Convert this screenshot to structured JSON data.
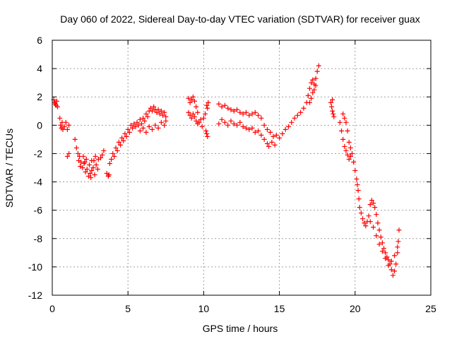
{
  "chart_data": {
    "type": "scatter",
    "title": "Day 060 of 2022, Sidereal Day-to-day VTEC variation (SDTVAR) for receiver guax",
    "xlabel": "GPS time / hours",
    "ylabel": "SDTVAR / TECUs",
    "xlim": [
      0,
      25
    ],
    "ylim": [
      -12,
      6
    ],
    "xticks": [
      0,
      5,
      10,
      15,
      20,
      25
    ],
    "xtick_labels": [
      "0",
      "5",
      "10",
      "15",
      "20",
      "25"
    ],
    "yticks": [
      -12,
      -10,
      -8,
      -6,
      -4,
      -2,
      0,
      2,
      4,
      6
    ],
    "ytick_labels": [
      "-12",
      "-10",
      "-8",
      "-6",
      "-4",
      "-2",
      "0",
      "2",
      "4",
      "6"
    ],
    "grid": true,
    "marker": "+",
    "color": "#ff0000",
    "series": [
      {
        "name": "guax",
        "points": [
          [
            0.1,
            1.8
          ],
          [
            0.15,
            1.6
          ],
          [
            0.2,
            1.5
          ],
          [
            0.25,
            1.4
          ],
          [
            0.3,
            1.7
          ],
          [
            0.35,
            1.3
          ],
          [
            0.5,
            0.5
          ],
          [
            0.55,
            0.0
          ],
          [
            0.6,
            -0.2
          ],
          [
            0.65,
            0.2
          ],
          [
            0.7,
            -0.3
          ],
          [
            0.8,
            -0.1
          ],
          [
            0.9,
            0.2
          ],
          [
            1.0,
            -0.3
          ],
          [
            1.1,
            0.0
          ],
          [
            1.0,
            -2.2
          ],
          [
            1.1,
            -2.0
          ],
          [
            1.5,
            -1.0
          ],
          [
            1.6,
            -1.6
          ],
          [
            1.7,
            -2.0
          ],
          [
            1.75,
            -2.5
          ],
          [
            1.8,
            -2.2
          ],
          [
            1.85,
            -2.9
          ],
          [
            1.9,
            -2.6
          ],
          [
            2.0,
            -3.0
          ],
          [
            2.1,
            -2.7
          ],
          [
            2.2,
            -3.3
          ],
          [
            2.3,
            -3.1
          ],
          [
            2.4,
            -3.6
          ],
          [
            2.5,
            -3.4
          ],
          [
            2.55,
            -3.7
          ],
          [
            2.6,
            -3.2
          ],
          [
            2.7,
            -3.0
          ],
          [
            2.8,
            -3.5
          ],
          [
            2.9,
            -2.8
          ],
          [
            3.0,
            -3.1
          ],
          [
            2.05,
            -2.2
          ],
          [
            2.15,
            -2.6
          ],
          [
            2.25,
            -2.4
          ],
          [
            2.45,
            -2.8
          ],
          [
            2.6,
            -2.5
          ],
          [
            2.75,
            -2.5
          ],
          [
            2.85,
            -2.2
          ],
          [
            3.05,
            -2.4
          ],
          [
            3.2,
            -2.3
          ],
          [
            3.3,
            -2.1
          ],
          [
            3.4,
            -1.8
          ],
          [
            3.6,
            -3.4
          ],
          [
            3.7,
            -3.6
          ],
          [
            3.75,
            -3.5
          ],
          [
            3.8,
            -2.7
          ],
          [
            3.9,
            -2.4
          ],
          [
            4.0,
            -2.0
          ],
          [
            4.1,
            -2.2
          ],
          [
            4.2,
            -1.6
          ],
          [
            4.3,
            -1.8
          ],
          [
            4.4,
            -1.2
          ],
          [
            4.5,
            -1.4
          ],
          [
            4.6,
            -0.9
          ],
          [
            4.7,
            -1.1
          ],
          [
            4.8,
            -0.6
          ],
          [
            4.9,
            -0.8
          ],
          [
            5.0,
            -0.3
          ],
          [
            5.1,
            -0.5
          ],
          [
            5.2,
            0.0
          ],
          [
            5.3,
            -0.2
          ],
          [
            5.4,
            0.1
          ],
          [
            5.5,
            -0.1
          ],
          [
            5.6,
            0.2
          ],
          [
            5.7,
            0.0
          ],
          [
            5.8,
            0.4
          ],
          [
            5.9,
            0.1
          ],
          [
            6.0,
            0.5
          ],
          [
            6.1,
            0.3
          ],
          [
            6.2,
            0.8
          ],
          [
            6.3,
            0.6
          ],
          [
            6.4,
            1.0
          ],
          [
            6.5,
            1.2
          ],
          [
            6.6,
            1.0
          ],
          [
            6.7,
            1.3
          ],
          [
            6.8,
            1.1
          ],
          [
            6.9,
            0.9
          ],
          [
            7.0,
            1.1
          ],
          [
            7.1,
            0.8
          ],
          [
            7.2,
            1.0
          ],
          [
            7.3,
            0.7
          ],
          [
            7.4,
            0.9
          ],
          [
            7.5,
            0.6
          ],
          [
            5.8,
            -0.4
          ],
          [
            6.0,
            -0.2
          ],
          [
            6.2,
            -0.5
          ],
          [
            6.4,
            -0.1
          ],
          [
            6.6,
            -0.3
          ],
          [
            6.8,
            0.0
          ],
          [
            7.0,
            -0.2
          ],
          [
            7.2,
            0.2
          ],
          [
            7.4,
            0.0
          ],
          [
            7.5,
            0.3
          ],
          [
            9.0,
            1.9
          ],
          [
            9.1,
            1.6
          ],
          [
            9.2,
            1.8
          ],
          [
            9.3,
            2.0
          ],
          [
            9.4,
            1.7
          ],
          [
            9.5,
            1.3
          ],
          [
            9.6,
            0.9
          ],
          [
            9.0,
            0.9
          ],
          [
            9.1,
            0.7
          ],
          [
            9.2,
            0.5
          ],
          [
            9.3,
            0.8
          ],
          [
            9.4,
            0.6
          ],
          [
            9.5,
            0.3
          ],
          [
            9.6,
            0.1
          ],
          [
            9.7,
            0.2
          ],
          [
            9.8,
            0.4
          ],
          [
            9.9,
            -0.1
          ],
          [
            10.0,
            0.5
          ],
          [
            10.1,
            0.8
          ],
          [
            10.2,
            1.4
          ],
          [
            10.25,
            1.2
          ],
          [
            10.3,
            1.6
          ],
          [
            10.15,
            -0.4
          ],
          [
            10.2,
            -0.6
          ],
          [
            10.25,
            -0.8
          ],
          [
            11.0,
            1.5
          ],
          [
            11.2,
            1.3
          ],
          [
            11.4,
            1.4
          ],
          [
            11.6,
            1.2
          ],
          [
            11.8,
            1.1
          ],
          [
            12.0,
            1.0
          ],
          [
            12.2,
            1.1
          ],
          [
            12.4,
            0.9
          ],
          [
            12.6,
            0.8
          ],
          [
            12.8,
            0.9
          ],
          [
            13.0,
            0.7
          ],
          [
            13.2,
            0.8
          ],
          [
            13.4,
            0.9
          ],
          [
            13.6,
            0.7
          ],
          [
            13.8,
            0.5
          ],
          [
            11.0,
            0.1
          ],
          [
            11.2,
            0.4
          ],
          [
            11.4,
            0.2
          ],
          [
            11.6,
            0.0
          ],
          [
            11.8,
            0.3
          ],
          [
            12.0,
            0.1
          ],
          [
            12.2,
            0.0
          ],
          [
            12.4,
            0.2
          ],
          [
            12.6,
            -0.1
          ],
          [
            12.8,
            -0.2
          ],
          [
            13.0,
            -0.3
          ],
          [
            13.2,
            -0.2
          ],
          [
            13.4,
            -0.5
          ],
          [
            13.6,
            -0.4
          ],
          [
            13.8,
            -0.7
          ],
          [
            14.0,
            -1.0
          ],
          [
            14.2,
            -1.3
          ],
          [
            14.3,
            -1.5
          ],
          [
            14.5,
            -1.2
          ],
          [
            14.7,
            -1.4
          ],
          [
            14.0,
            0.0
          ],
          [
            14.2,
            -0.3
          ],
          [
            14.4,
            -0.5
          ],
          [
            14.6,
            -0.8
          ],
          [
            14.8,
            -0.7
          ],
          [
            15.0,
            -0.9
          ],
          [
            15.2,
            -0.6
          ],
          [
            15.4,
            -0.3
          ],
          [
            15.6,
            -0.1
          ],
          [
            15.8,
            0.2
          ],
          [
            16.0,
            0.5
          ],
          [
            16.2,
            0.7
          ],
          [
            16.4,
            0.9
          ],
          [
            16.6,
            1.2
          ],
          [
            16.8,
            1.6
          ],
          [
            16.9,
            2.1
          ],
          [
            17.0,
            2.6
          ],
          [
            17.1,
            3.0
          ],
          [
            17.2,
            3.2
          ],
          [
            17.3,
            2.9
          ],
          [
            17.4,
            3.3
          ],
          [
            17.5,
            3.8
          ],
          [
            17.6,
            4.2
          ],
          [
            17.0,
            1.6
          ],
          [
            17.1,
            1.9
          ],
          [
            17.2,
            2.3
          ],
          [
            17.3,
            2.5
          ],
          [
            17.4,
            2.8
          ],
          [
            18.4,
            1.6
          ],
          [
            18.45,
            1.3
          ],
          [
            18.5,
            1.0
          ],
          [
            18.55,
            0.8
          ],
          [
            18.6,
            0.6
          ],
          [
            18.5,
            1.8
          ],
          [
            19.0,
            0.2
          ],
          [
            19.1,
            -0.4
          ],
          [
            19.2,
            -1.0
          ],
          [
            19.3,
            -1.5
          ],
          [
            19.4,
            -1.8
          ],
          [
            19.5,
            -2.1
          ],
          [
            19.6,
            -2.4
          ],
          [
            19.7,
            -2.2
          ],
          [
            19.2,
            0.8
          ],
          [
            19.3,
            0.5
          ],
          [
            19.4,
            0.2
          ],
          [
            19.5,
            -0.4
          ],
          [
            19.6,
            -1.2
          ],
          [
            19.7,
            -1.6
          ],
          [
            19.8,
            -2.0
          ],
          [
            19.9,
            -2.6
          ],
          [
            20.0,
            -3.2
          ],
          [
            20.1,
            -3.8
          ],
          [
            20.15,
            -4.2
          ],
          [
            20.2,
            -4.6
          ],
          [
            20.25,
            -5.2
          ],
          [
            20.3,
            -5.8
          ],
          [
            20.4,
            -6.2
          ],
          [
            20.5,
            -6.6
          ],
          [
            20.6,
            -6.9
          ],
          [
            20.7,
            -7.1
          ],
          [
            20.8,
            -6.8
          ],
          [
            20.9,
            -6.4
          ],
          [
            21.0,
            -5.6
          ],
          [
            21.1,
            -5.3
          ],
          [
            21.2,
            -5.5
          ],
          [
            21.3,
            -5.8
          ],
          [
            21.4,
            -6.3
          ],
          [
            21.5,
            -6.9
          ],
          [
            21.6,
            -7.4
          ],
          [
            21.7,
            -7.9
          ],
          [
            21.8,
            -8.3
          ],
          [
            21.9,
            -8.7
          ],
          [
            22.0,
            -9.0
          ],
          [
            22.1,
            -9.3
          ],
          [
            22.2,
            -9.5
          ],
          [
            22.3,
            -9.8
          ],
          [
            22.4,
            -10.2
          ],
          [
            22.5,
            -10.6
          ],
          [
            22.6,
            -10.3
          ],
          [
            22.7,
            -9.8
          ],
          [
            22.8,
            -9.0
          ],
          [
            22.85,
            -8.2
          ],
          [
            22.9,
            -7.4
          ],
          [
            21.0,
            -6.8
          ],
          [
            21.2,
            -7.2
          ],
          [
            21.4,
            -7.8
          ],
          [
            21.6,
            -8.4
          ],
          [
            21.8,
            -8.9
          ],
          [
            22.0,
            -9.4
          ],
          [
            22.2,
            -9.9
          ],
          [
            22.4,
            -9.6
          ],
          [
            22.6,
            -9.2
          ],
          [
            22.8,
            -8.6
          ]
        ]
      }
    ]
  }
}
